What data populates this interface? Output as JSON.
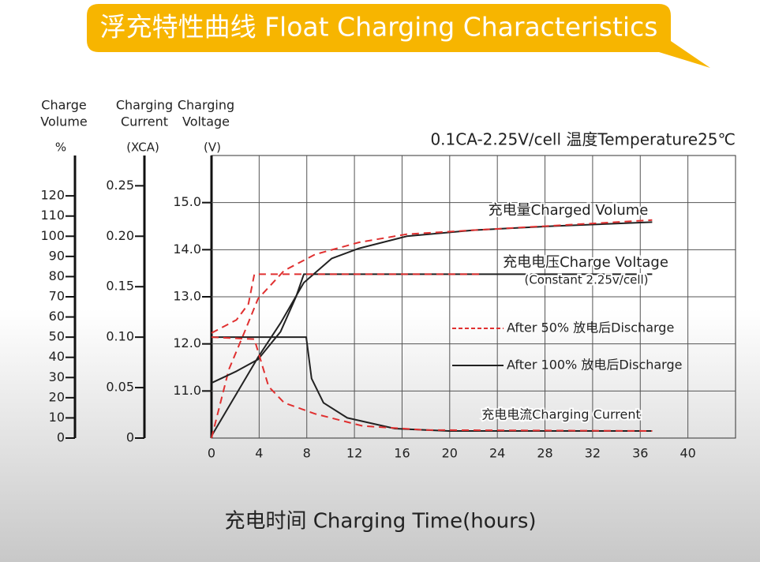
{
  "chart_data": {
    "type": "line",
    "title": "浮充特性曲线 Float Charging Characteristics",
    "subtitle": "0.1CA-2.25V/cell  温度Temperature25℃",
    "x_label": "充电时间 Charging Time(hours)",
    "xlim": [
      0,
      44
    ],
    "xticks": [
      0,
      4,
      8,
      12,
      16,
      20,
      24,
      28,
      32,
      36,
      40
    ],
    "y_label": [
      "Charging",
      "Voltage"
    ],
    "y_unit": "(V)",
    "ylim": [
      10,
      16
    ],
    "yticks": [
      {
        "value": 11,
        "label": "11.0"
      },
      {
        "value": 12,
        "label": "12.0"
      },
      {
        "value": 13,
        "label": "13.0"
      },
      {
        "value": 14,
        "label": "14.0"
      },
      {
        "value": 15,
        "label": "15.0"
      }
    ],
    "y2_label": [
      "Charging",
      "Current"
    ],
    "y2_unit": "(XCA)",
    "y2lim": [
      0,
      0.28
    ],
    "y2ticks": [
      0,
      {
        "value": 0.05,
        "label": "0.05"
      },
      {
        "value": 0.1,
        "label": "0.10"
      },
      {
        "value": 0.15,
        "label": "0.15"
      },
      {
        "value": 0.2,
        "label": "0.20"
      },
      {
        "value": 0.25,
        "label": "0.25"
      }
    ],
    "y3_label": [
      "Charge",
      "Volume"
    ],
    "y3_unit": "%",
    "y3lim": [
      0,
      140
    ],
    "y3ticks": [
      0,
      10,
      20,
      30,
      40,
      50,
      60,
      70,
      80,
      90,
      100,
      110,
      120
    ],
    "grid": true,
    "series": [
      {
        "axis": "y3",
        "color": "#222222",
        "dash": false,
        "x": [
          0,
          2.1,
          3.9,
          5.8,
          7.75,
          10.1,
          12.4,
          16.4,
          22,
          28.6,
          37
        ],
        "values": [
          1,
          22,
          40,
          57,
          77,
          89,
          94,
          100,
          103,
          105,
          107
        ]
      },
      {
        "axis": "y3",
        "color": "#e03030",
        "dash": true,
        "x": [
          0,
          1.46,
          2.8,
          3.9,
          6.1,
          8.7,
          12.4,
          16.4,
          22,
          37
        ],
        "values": [
          0,
          34,
          53,
          69,
          83,
          91,
          97,
          101,
          103,
          108
        ]
      },
      {
        "axis": "y",
        "color": "#222222",
        "dash": false,
        "x": [
          0,
          2.1,
          3.9,
          5.8,
          7.1,
          7.75,
          37
        ],
        "values": [
          11.17,
          11.42,
          11.67,
          12.26,
          13.0,
          13.48,
          13.48
        ]
      },
      {
        "axis": "y",
        "color": "#e03030",
        "dash": true,
        "x": [
          0,
          2.1,
          3.1,
          3.6,
          22.7
        ],
        "values": [
          12.23,
          12.51,
          12.85,
          13.48,
          13.48
        ]
      },
      {
        "axis": "y2",
        "color": "#222222",
        "dash": false,
        "x": [
          0,
          7.95,
          8.4,
          9.4,
          11.4,
          15.4,
          19.9,
          37
        ],
        "values": [
          0.1,
          0.1,
          0.059,
          0.035,
          0.02,
          0.0094,
          0.007,
          0.007
        ]
      },
      {
        "axis": "y2",
        "color": "#e03030",
        "dash": true,
        "x": [
          0,
          3.6,
          4.8,
          6.1,
          8.7,
          12.7,
          18.0,
          37
        ],
        "values": [
          0.1,
          0.098,
          0.051,
          0.035,
          0.024,
          0.012,
          0.008,
          0.007
        ]
      }
    ],
    "annotations": [
      "充电量Charged Volume",
      "充电电压Charge Voltage",
      "(Constant 2.25v/cell)",
      "充电电流Charging Current"
    ],
    "legend": [
      {
        "name": "After 50% 放电后Discharge",
        "color": "#e03030",
        "dash": true
      },
      {
        "name": "After 100% 放电后Discharge",
        "color": "#222222",
        "dash": false
      }
    ]
  }
}
